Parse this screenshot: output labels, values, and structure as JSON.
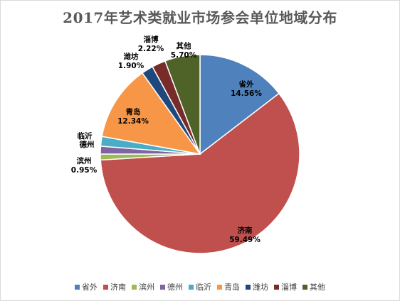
{
  "chart_data": {
    "type": "pie",
    "title": "2017年艺术类就业市场参会单位地域分布",
    "legend_position": "bottom",
    "slices": [
      {
        "label": "省外",
        "value": 14.56,
        "value_text": "14.56%",
        "color": "#4f81bd"
      },
      {
        "label": "济南",
        "value": 59.49,
        "value_text": "59.49%",
        "color": "#c0504d"
      },
      {
        "label": "滨州",
        "value": 0.95,
        "value_text": "0.95%",
        "color": "#9bbb59"
      },
      {
        "label": "德州",
        "value": 1.27,
        "value_text": "",
        "color": "#8064a2"
      },
      {
        "label": "临沂",
        "value": 1.57,
        "value_text": "",
        "color": "#4bacc6"
      },
      {
        "label": "青岛",
        "value": 12.34,
        "value_text": "12.34%",
        "color": "#f79646"
      },
      {
        "label": "潍坊",
        "value": 1.9,
        "value_text": "1.90%",
        "color": "#1f497d"
      },
      {
        "label": "淄博",
        "value": 2.22,
        "value_text": "2.22%",
        "color": "#772c2a"
      },
      {
        "label": "其他",
        "value": 5.7,
        "value_text": "5.70%",
        "color": "#4f6228"
      }
    ]
  }
}
